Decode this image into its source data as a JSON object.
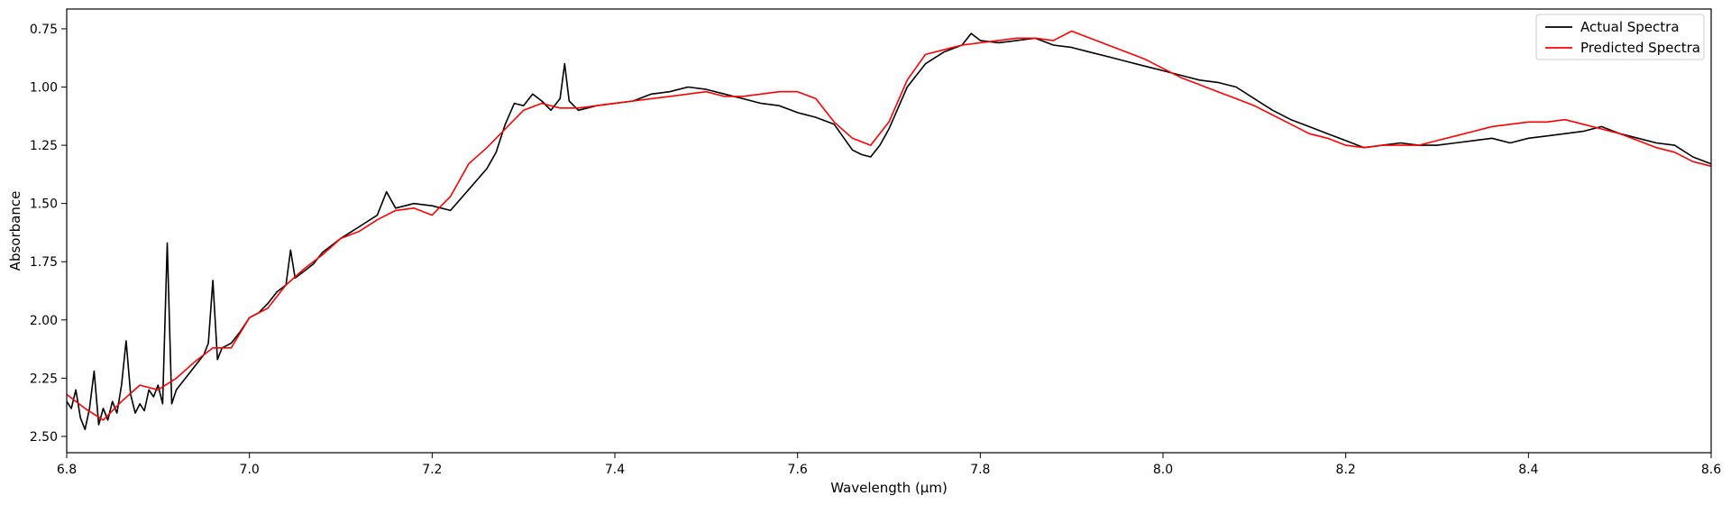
{
  "chart_data": {
    "type": "line",
    "title": "",
    "xlabel": "Wavelength (μm)",
    "ylabel": "Absorbance",
    "xlim": [
      6.8,
      8.6
    ],
    "ylim": [
      2.57,
      0.665
    ],
    "y_inverted": true,
    "x_ticks": [
      6.8,
      7.0,
      7.2,
      7.4,
      7.6,
      7.8,
      8.0,
      8.2,
      8.4,
      8.6
    ],
    "x_tick_labels": [
      "6.8",
      "7.0",
      "7.2",
      "7.4",
      "7.6",
      "7.8",
      "8.0",
      "8.2",
      "8.4",
      "8.6"
    ],
    "y_ticks": [
      0.75,
      1.0,
      1.25,
      1.5,
      1.75,
      2.0,
      2.25,
      2.5
    ],
    "y_tick_labels": [
      "0.75",
      "1.00",
      "1.25",
      "1.50",
      "1.75",
      "2.00",
      "2.25",
      "2.50"
    ],
    "grid": false,
    "legend_position": "top-right",
    "series": [
      {
        "name": "Actual Spectra",
        "color": "#000000",
        "x": [
          6.8,
          6.805,
          6.81,
          6.815,
          6.82,
          6.825,
          6.83,
          6.835,
          6.84,
          6.845,
          6.85,
          6.855,
          6.86,
          6.865,
          6.87,
          6.875,
          6.88,
          6.885,
          6.89,
          6.895,
          6.9,
          6.905,
          6.91,
          6.915,
          6.92,
          6.93,
          6.94,
          6.95,
          6.955,
          6.96,
          6.965,
          6.97,
          6.98,
          6.99,
          7.0,
          7.01,
          7.02,
          7.03,
          7.04,
          7.045,
          7.05,
          7.06,
          7.07,
          7.08,
          7.1,
          7.12,
          7.14,
          7.15,
          7.16,
          7.18,
          7.2,
          7.22,
          7.24,
          7.26,
          7.27,
          7.28,
          7.29,
          7.3,
          7.31,
          7.32,
          7.33,
          7.34,
          7.345,
          7.35,
          7.36,
          7.38,
          7.4,
          7.42,
          7.44,
          7.46,
          7.48,
          7.5,
          7.52,
          7.54,
          7.56,
          7.58,
          7.6,
          7.62,
          7.64,
          7.66,
          7.67,
          7.68,
          7.69,
          7.7,
          7.72,
          7.74,
          7.76,
          7.78,
          7.79,
          7.8,
          7.82,
          7.84,
          7.86,
          7.88,
          7.9,
          7.92,
          7.94,
          7.96,
          7.98,
          8.0,
          8.02,
          8.04,
          8.06,
          8.08,
          8.1,
          8.12,
          8.14,
          8.16,
          8.18,
          8.2,
          8.22,
          8.24,
          8.26,
          8.28,
          8.3,
          8.32,
          8.34,
          8.36,
          8.38,
          8.4,
          8.42,
          8.44,
          8.46,
          8.48,
          8.5,
          8.52,
          8.54,
          8.56,
          8.58,
          8.6
        ],
        "y": [
          2.35,
          2.38,
          2.3,
          2.42,
          2.47,
          2.38,
          2.22,
          2.45,
          2.38,
          2.43,
          2.35,
          2.4,
          2.28,
          2.09,
          2.32,
          2.4,
          2.36,
          2.39,
          2.3,
          2.33,
          2.28,
          2.36,
          1.67,
          2.36,
          2.3,
          2.25,
          2.2,
          2.15,
          2.1,
          1.83,
          2.17,
          2.12,
          2.1,
          2.05,
          1.99,
          1.97,
          1.93,
          1.88,
          1.85,
          1.7,
          1.82,
          1.79,
          1.76,
          1.71,
          1.65,
          1.6,
          1.55,
          1.45,
          1.52,
          1.5,
          1.51,
          1.53,
          1.44,
          1.35,
          1.28,
          1.16,
          1.07,
          1.08,
          1.03,
          1.06,
          1.1,
          1.05,
          0.9,
          1.06,
          1.1,
          1.08,
          1.07,
          1.06,
          1.03,
          1.02,
          1.0,
          1.01,
          1.03,
          1.05,
          1.07,
          1.08,
          1.11,
          1.13,
          1.16,
          1.27,
          1.29,
          1.3,
          1.25,
          1.18,
          1.0,
          0.9,
          0.85,
          0.82,
          0.77,
          0.8,
          0.81,
          0.8,
          0.79,
          0.82,
          0.83,
          0.85,
          0.87,
          0.89,
          0.91,
          0.93,
          0.95,
          0.97,
          0.98,
          1.0,
          1.05,
          1.1,
          1.14,
          1.17,
          1.2,
          1.23,
          1.26,
          1.25,
          1.24,
          1.25,
          1.25,
          1.24,
          1.23,
          1.22,
          1.24,
          1.22,
          1.21,
          1.2,
          1.19,
          1.17,
          1.2,
          1.22,
          1.24,
          1.25,
          1.3,
          1.33
        ]
      },
      {
        "name": "Predicted Spectra",
        "color": "#ff0000",
        "x": [
          6.8,
          6.82,
          6.84,
          6.86,
          6.88,
          6.9,
          6.92,
          6.94,
          6.96,
          6.98,
          7.0,
          7.02,
          7.04,
          7.06,
          7.08,
          7.1,
          7.12,
          7.14,
          7.16,
          7.18,
          7.2,
          7.22,
          7.24,
          7.26,
          7.28,
          7.3,
          7.32,
          7.34,
          7.36,
          7.38,
          7.4,
          7.42,
          7.44,
          7.46,
          7.48,
          7.5,
          7.52,
          7.54,
          7.56,
          7.58,
          7.6,
          7.62,
          7.64,
          7.66,
          7.68,
          7.7,
          7.72,
          7.74,
          7.76,
          7.78,
          7.8,
          7.82,
          7.84,
          7.86,
          7.88,
          7.9,
          7.92,
          7.94,
          7.96,
          7.98,
          8.0,
          8.02,
          8.04,
          8.06,
          8.08,
          8.1,
          8.12,
          8.14,
          8.16,
          8.18,
          8.2,
          8.22,
          8.24,
          8.26,
          8.28,
          8.3,
          8.32,
          8.34,
          8.36,
          8.38,
          8.4,
          8.42,
          8.44,
          8.46,
          8.48,
          8.5,
          8.52,
          8.54,
          8.56,
          8.58,
          8.6
        ],
        "y": [
          2.32,
          2.38,
          2.43,
          2.35,
          2.28,
          2.3,
          2.25,
          2.18,
          2.12,
          2.12,
          1.99,
          1.95,
          1.85,
          1.78,
          1.72,
          1.65,
          1.62,
          1.57,
          1.53,
          1.52,
          1.55,
          1.47,
          1.33,
          1.26,
          1.18,
          1.1,
          1.07,
          1.09,
          1.09,
          1.08,
          1.07,
          1.06,
          1.05,
          1.04,
          1.03,
          1.02,
          1.04,
          1.04,
          1.03,
          1.02,
          1.02,
          1.05,
          1.15,
          1.22,
          1.25,
          1.15,
          0.97,
          0.86,
          0.84,
          0.82,
          0.81,
          0.8,
          0.79,
          0.79,
          0.8,
          0.76,
          0.79,
          0.82,
          0.85,
          0.88,
          0.92,
          0.96,
          0.99,
          1.02,
          1.05,
          1.08,
          1.12,
          1.16,
          1.2,
          1.22,
          1.25,
          1.26,
          1.25,
          1.25,
          1.25,
          1.23,
          1.21,
          1.19,
          1.17,
          1.16,
          1.15,
          1.15,
          1.14,
          1.16,
          1.18,
          1.2,
          1.23,
          1.26,
          1.28,
          1.32,
          1.34
        ]
      }
    ]
  }
}
